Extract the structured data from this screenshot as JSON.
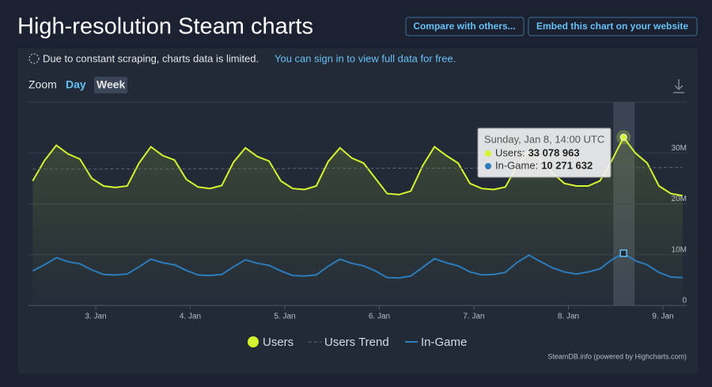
{
  "header": {
    "title": "High-resolution Steam charts",
    "buttons": [
      "Compare with others...",
      "Embed this chart on your website"
    ]
  },
  "notice": {
    "text": "Due to constant scraping, charts data is limited.",
    "link": "You can sign in to view full data for free."
  },
  "zoom": {
    "label": "Zoom",
    "options": [
      "Day",
      "Week"
    ]
  },
  "credit": "SteamDB.info (powered by Highcharts.com)",
  "chart_data": {
    "type": "line",
    "x": [
      2.3333,
      2.4583,
      2.5833,
      2.7083,
      2.8333,
      2.9583,
      3.0833,
      3.2083,
      3.3333,
      3.4583,
      3.5833,
      3.7083,
      3.8333,
      3.9583,
      4.0833,
      4.2083,
      4.3333,
      4.4583,
      4.5833,
      4.7083,
      4.8333,
      4.9583,
      5.0833,
      5.2083,
      5.3333,
      5.4583,
      5.5833,
      5.7083,
      5.8333,
      5.9583,
      6.0833,
      6.2083,
      6.3333,
      6.4583,
      6.5833,
      6.7083,
      6.8333,
      6.9583,
      7.0833,
      7.2083,
      7.3333,
      7.4583,
      7.5833,
      7.7083,
      7.8333,
      7.9583,
      8.0833,
      8.2083,
      8.3333,
      8.4583,
      8.5833,
      8.7083,
      8.8333,
      8.9583,
      9.0833,
      9.2083
    ],
    "series": [
      {
        "name": "Users",
        "color": "#d4f52e",
        "area": true,
        "values": [
          24500000,
          28500000,
          31500000,
          29800000,
          28800000,
          25000000,
          23500000,
          23200000,
          23500000,
          28000000,
          31200000,
          29500000,
          28600000,
          24800000,
          23300000,
          23000000,
          23600000,
          28200000,
          31000000,
          29300000,
          28400000,
          24500000,
          23000000,
          22800000,
          23500000,
          28300000,
          31000000,
          29000000,
          28000000,
          25000000,
          22000000,
          21800000,
          22500000,
          27500000,
          31200000,
          29500000,
          28000000,
          24000000,
          23000000,
          22800000,
          23300000,
          27500000,
          30500000,
          28500000,
          26000000,
          24000000,
          23500000,
          23500000,
          24500000,
          28500000,
          33078963,
          30000000,
          28000000,
          23500000,
          22000000,
          21600000
        ]
      },
      {
        "name": "Users Trend",
        "color": "#5d6676",
        "dashed": true,
        "values": [
          26800000,
          26800000,
          26800000,
          26800000,
          26800000,
          26800000,
          26850000,
          26850000,
          26850000,
          26850000,
          26850000,
          26850000,
          26850000,
          26850000,
          26900000,
          26900000,
          26900000,
          26900000,
          26900000,
          26900000,
          26900000,
          26900000,
          26950000,
          26950000,
          26950000,
          26950000,
          26950000,
          26950000,
          26950000,
          26950000,
          27000000,
          27000000,
          27000000,
          27000000,
          27000000,
          27000000,
          27000000,
          27000000,
          27050000,
          27050000,
          27050000,
          27050000,
          27050000,
          27050000,
          27050000,
          27050000,
          27100000,
          27100000,
          27100000,
          27100000,
          27100000,
          27100000,
          27100000,
          27100000,
          27150000,
          27150000
        ]
      },
      {
        "name": "In-Game",
        "color": "#2b7bbd",
        "values": [
          6800000,
          8000000,
          9400000,
          8600000,
          8200000,
          7000000,
          6100000,
          6000000,
          6200000,
          7600000,
          9100000,
          8400000,
          8000000,
          6900000,
          6000000,
          5900000,
          6100000,
          7600000,
          9000000,
          8300000,
          7900000,
          6800000,
          5900000,
          5800000,
          6000000,
          7700000,
          9100000,
          8300000,
          7800000,
          6800000,
          5500000,
          5400000,
          5800000,
          7500000,
          9200000,
          8400000,
          7800000,
          6600000,
          6000000,
          6100000,
          6500000,
          8500000,
          9900000,
          8600000,
          7400000,
          6600000,
          6200000,
          6600000,
          7200000,
          9000000,
          10271632,
          8800000,
          8000000,
          6500000,
          5600000,
          5500000
        ]
      }
    ],
    "xlim": [
      2.289,
      9.251
    ],
    "xticks": [
      {
        "value": 3,
        "label": "3. Jan"
      },
      {
        "value": 4,
        "label": "4. Jan"
      },
      {
        "value": 5,
        "label": "5. Jan"
      },
      {
        "value": 6,
        "label": "6. Jan"
      },
      {
        "value": 7,
        "label": "7. Jan"
      },
      {
        "value": 8,
        "label": "8. Jan"
      },
      {
        "value": 9,
        "label": "9. Jan"
      }
    ],
    "ylim": [
      0,
      40000000
    ],
    "yticks": [
      0,
      {
        "value": 10000000,
        "label": "10M"
      },
      {
        "value": 20000000,
        "label": "20M"
      },
      {
        "value": 30000000,
        "label": "30M"
      }
    ],
    "grid": true,
    "tooltip": {
      "header": "Sunday, Jan 8, 14:00 UTC",
      "x": 8.5833,
      "items": [
        {
          "label": "Users:",
          "color": "#d4f52e",
          "value": {
            "value": 33078963,
            "label": "33 078 963"
          }
        },
        {
          "label": "In-Game:",
          "color": "#2b7bbd",
          "value": {
            "value": 10271632,
            "label": "10 271 632"
          }
        }
      ]
    }
  }
}
